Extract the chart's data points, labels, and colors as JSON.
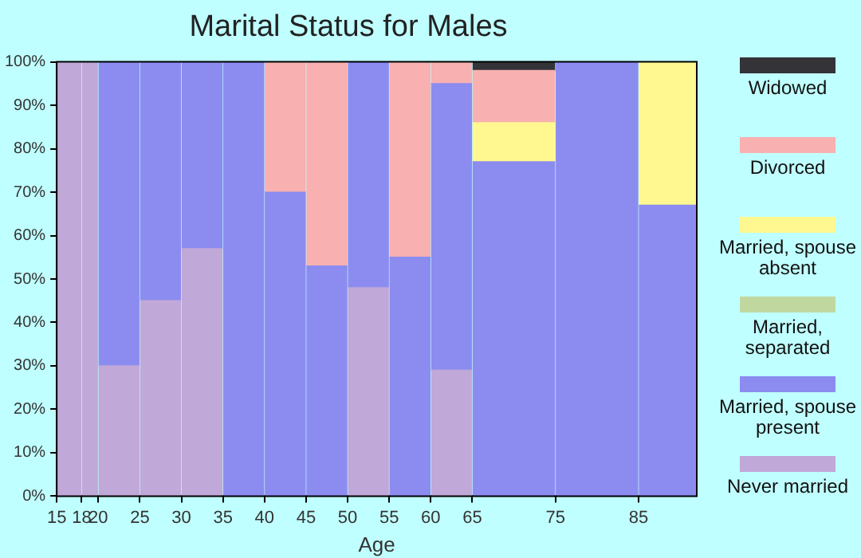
{
  "chart_data": {
    "type": "bar",
    "title": "Marital Status for Males",
    "xlabel": "Age",
    "stacked": true,
    "grid": false,
    "legend": "right",
    "x": [
      16.5,
      19,
      22.5,
      27.5,
      32.5,
      37.5,
      42.5,
      47.5,
      52.5,
      57.5,
      62.5,
      70,
      80,
      88.5
    ],
    "xlim": [
      15,
      92
    ],
    "xticks": [
      15,
      18,
      20,
      25,
      30,
      35,
      40,
      45,
      50,
      55,
      60,
      65,
      75,
      85
    ],
    "ylim": [
      0,
      100
    ],
    "yticks": [
      {
        "value": 0,
        "label": "0%"
      },
      {
        "value": 10,
        "label": "10%"
      },
      {
        "value": 20,
        "label": "20%"
      },
      {
        "value": 30,
        "label": "30%"
      },
      {
        "value": 40,
        "label": "40%"
      },
      {
        "value": 50,
        "label": "50%"
      },
      {
        "value": 60,
        "label": "60%"
      },
      {
        "value": 70,
        "label": "70%"
      },
      {
        "value": 80,
        "label": "80%"
      },
      {
        "value": 90,
        "label": "90%"
      },
      {
        "value": 100,
        "label": "100%"
      }
    ],
    "series": [
      {
        "name": "Never married",
        "color": "#c0a8d8",
        "values": [
          100,
          100,
          30,
          45,
          57,
          0,
          0,
          0,
          48,
          0,
          29,
          0,
          0,
          0
        ]
      },
      {
        "name": "Married, spouse present",
        "color": "#8c8cf0",
        "values": [
          0,
          0,
          70,
          55,
          43,
          100,
          70,
          53,
          52,
          55,
          66,
          77,
          100,
          67
        ]
      },
      {
        "name": "Married, separated",
        "color": "#c0d8a0",
        "values": [
          0,
          0,
          0,
          0,
          0,
          0,
          0,
          0,
          0,
          0,
          0,
          0,
          0,
          0
        ]
      },
      {
        "name": "Married, spouse absent",
        "color": "#fff890",
        "values": [
          0,
          0,
          0,
          0,
          0,
          0,
          0,
          0,
          0,
          0,
          0,
          9,
          0,
          33
        ]
      },
      {
        "name": "Divorced",
        "color": "#f8b0b0",
        "values": [
          0,
          0,
          0,
          0,
          0,
          0,
          30,
          47,
          0,
          45,
          5,
          12,
          0,
          0
        ]
      },
      {
        "name": "Widowed",
        "color": "#333338",
        "values": [
          0,
          0,
          0,
          0,
          0,
          0,
          0,
          0,
          0,
          0,
          0,
          2,
          0,
          0
        ]
      }
    ]
  }
}
